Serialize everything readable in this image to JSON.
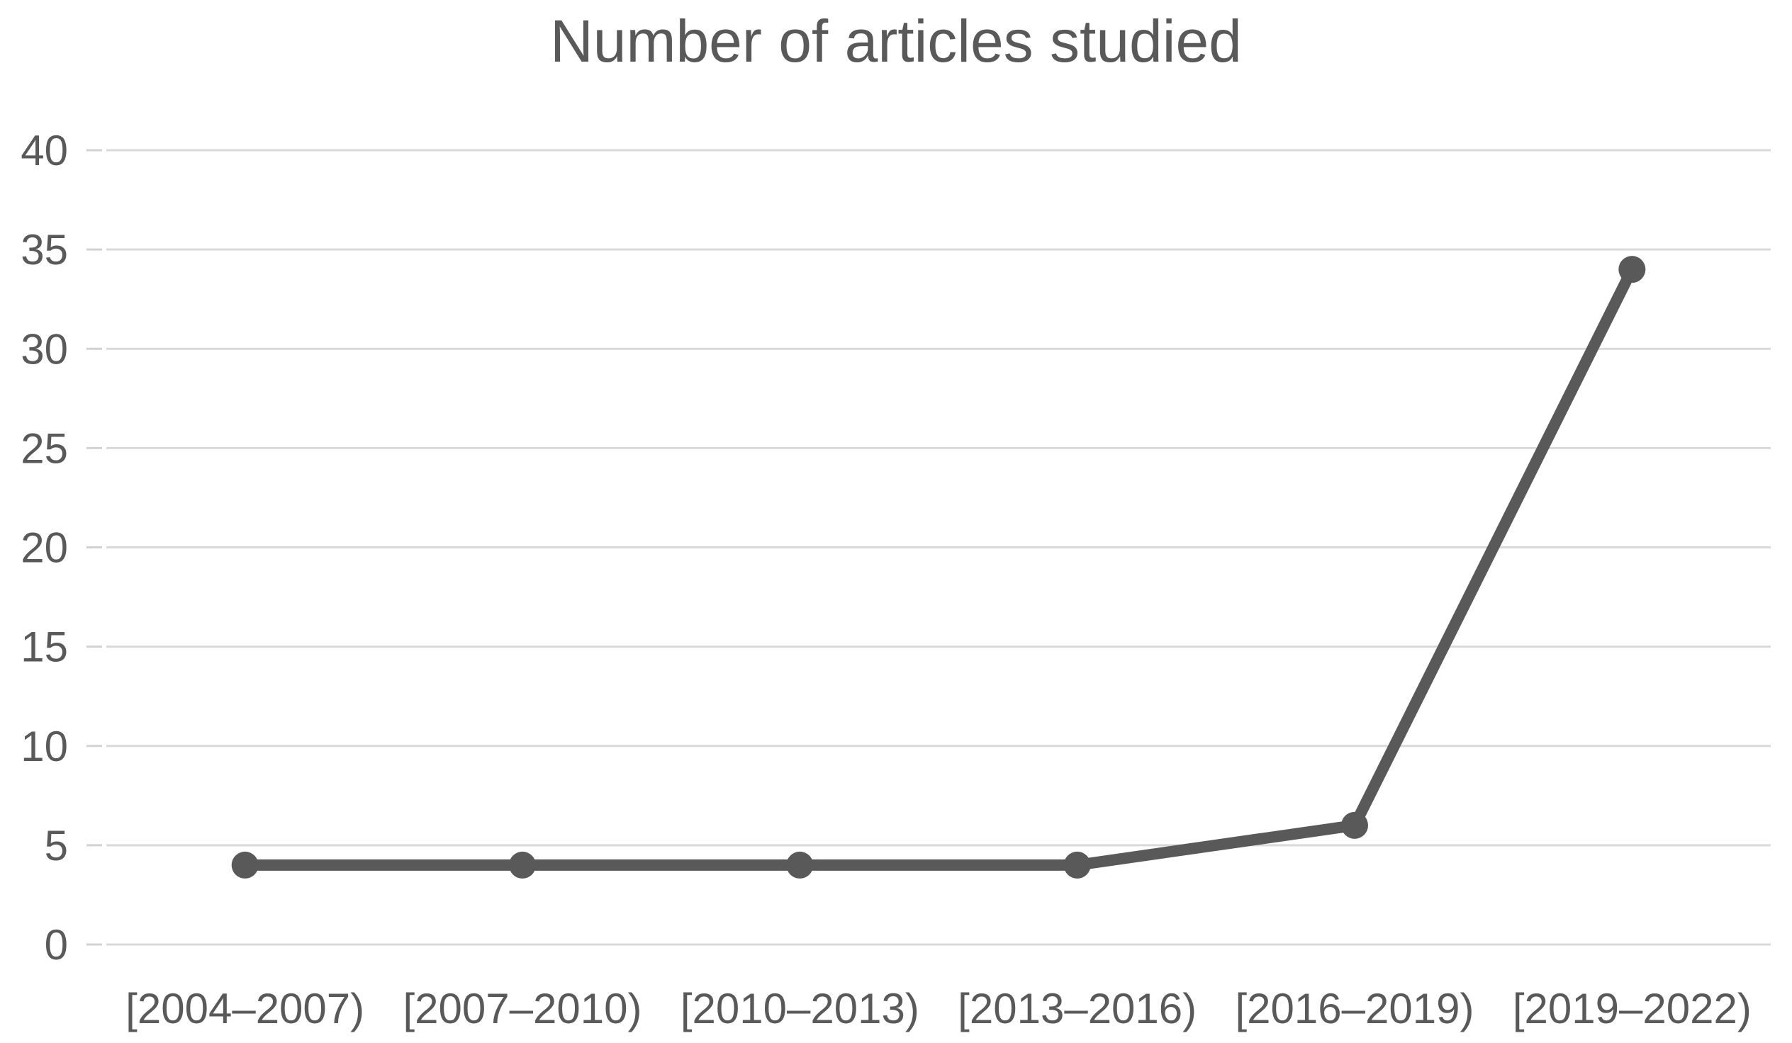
{
  "chart_data": {
    "type": "line",
    "title": "Number of articles studied",
    "categories": [
      "[2004–2007)",
      "[2007–2010)",
      "[2010–2013)",
      "[2013–2016)",
      "[2016–2019)",
      "[2019–2022)"
    ],
    "series": [
      {
        "name": "Number of articles studied",
        "values": [
          4,
          4,
          4,
          4,
          6,
          34
        ]
      }
    ],
    "xlabel": "",
    "ylabel": "",
    "ylim": [
      0,
      40
    ],
    "yticks": [
      0,
      5,
      10,
      15,
      20,
      25,
      30,
      35,
      40
    ],
    "grid": "horizontal",
    "legend_position": "none",
    "marker": "circle",
    "colors": {
      "line": "#595959",
      "marker": "#595959",
      "gridline": "#d9d9d9",
      "tick": "#d2d2d2",
      "text": "#595959",
      "title_text": "#595959",
      "background": "#ffffff"
    }
  }
}
